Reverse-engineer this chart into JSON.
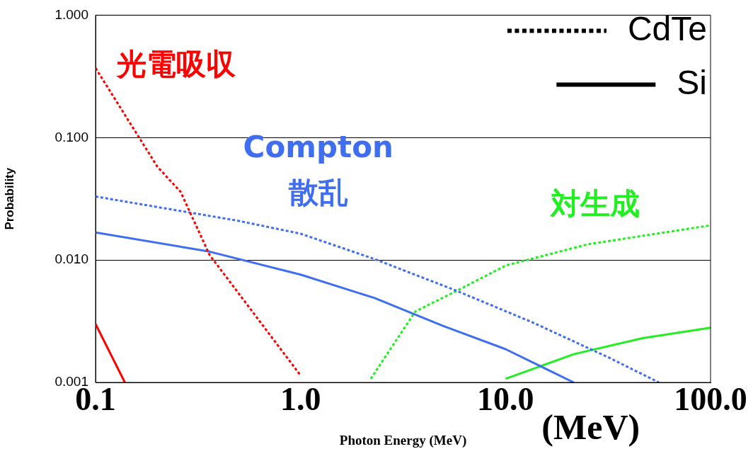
{
  "chart_data": {
    "type": "line",
    "xlabel": "Photon Energy (MeV)",
    "ylabel": "Probability",
    "log": "xy",
    "xlim": [
      0.1,
      100
    ],
    "ylim": [
      0.001,
      1
    ],
    "xticks": [
      {
        "value": 0.1,
        "label": "0.1"
      },
      {
        "value": 1,
        "label": "1.0"
      },
      {
        "value": 10,
        "label": "10.0"
      },
      {
        "value": 100,
        "label": "100.0"
      }
    ],
    "yticks": [
      {
        "value": 0.001,
        "label": "0.001"
      },
      {
        "value": 0.01,
        "label": "0.010"
      },
      {
        "value": 0.1,
        "label": "0.100"
      },
      {
        "value": 1,
        "label": "1.000"
      }
    ],
    "grid": "y",
    "legend": "top right",
    "marker": "none",
    "series": [
      {
        "name": "光電吸収",
        "color": "#ff0000",
        "line_style": "dotted",
        "x": [
          0.1,
          0.2,
          0.26,
          0.36,
          0.55,
          1.0
        ],
        "values": [
          0.37,
          0.058,
          0.036,
          0.011,
          0.0043,
          0.00114
        ]
      },
      {
        "color": "#ff0000",
        "line_style": "solid",
        "x": [
          0.1,
          0.139
        ],
        "values": [
          0.003,
          0.001
        ]
      },
      {
        "name": "Compton 散乱",
        "color": "#3f6ff0",
        "line_style": "dotted",
        "x": [
          0.1,
          0.49,
          1.0,
          2.29,
          5.78,
          13.5,
          31.8,
          56
        ],
        "values": [
          0.033,
          0.021,
          0.0164,
          0.0102,
          0.0056,
          0.0031,
          0.0016,
          0.001
        ]
      },
      {
        "color": "#3f6ff0",
        "line_style": "solid",
        "x": [
          0.1,
          0.36,
          1.0,
          2.29,
          4.95,
          10,
          21.5
        ],
        "values": [
          0.0168,
          0.0117,
          0.0076,
          0.0049,
          0.0029,
          0.00187,
          0.001
        ]
      },
      {
        "name": "対生成",
        "color": "#22ee22",
        "line_style": "dotted",
        "x": [
          2.2,
          3.63,
          5.78,
          10,
          25,
          100
        ],
        "values": [
          0.00107,
          0.0038,
          0.0056,
          0.009,
          0.0134,
          0.0192
        ]
      },
      {
        "color": "#22ee22",
        "line_style": "solid",
        "x": [
          10,
          21.5,
          46.6,
          100
        ],
        "values": [
          0.00107,
          0.0017,
          0.0023,
          0.0028
        ]
      },
      {
        "name": "CdTe",
        "color": "#000000",
        "line_style": "dotted"
      },
      {
        "name": "Si",
        "color": "#000000",
        "line_style": "solid"
      }
    ],
    "annotations": [
      "(MeV)"
    ]
  }
}
